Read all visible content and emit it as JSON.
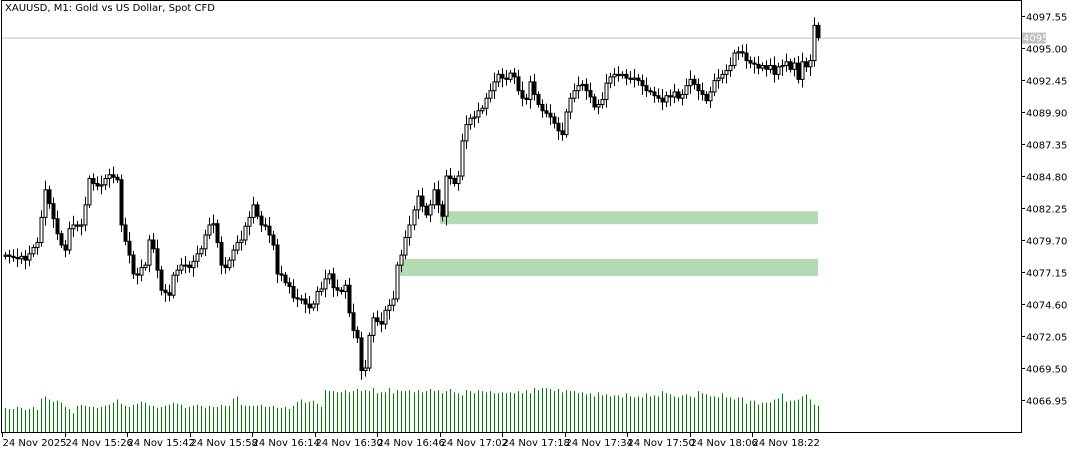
{
  "chart_data": {
    "type": "candlestick",
    "title": "XAUUSD, M1:  Gold vs US Dollar, Spot CFD",
    "symbol": "XAUUSD",
    "timeframe": "M1",
    "current_price": "4095.83",
    "y_ticks": [
      "4097.55",
      "4095.00",
      "4092.45",
      "4089.90",
      "4087.35",
      "4084.80",
      "4082.25",
      "4079.70",
      "4077.15",
      "4074.60",
      "4072.05",
      "4069.50",
      "4066.95"
    ],
    "x_ticks": [
      "24 Nov 2025",
      "24 Nov 15:26",
      "24 Nov 15:42",
      "24 Nov 15:58",
      "24 Nov 16:14",
      "24 Nov 16:30",
      "24 Nov 16:46",
      "24 Nov 17:02",
      "24 Nov 17:18",
      "24 Nov 17:34",
      "24 Nov 17:50",
      "24 Nov 18:06",
      "24 Nov 18:22"
    ],
    "zones": [
      {
        "from_time": "24 Nov 17:00",
        "top": 4081.99,
        "bottom": 4080.96,
        "color": "#b3dbb3"
      },
      {
        "from_time": "24 Nov 16:50",
        "top": 4078.19,
        "bottom": 4076.83,
        "color": "#b3dbb3"
      }
    ],
    "colors": {
      "bull": "#ffffff",
      "bear": "#000000",
      "outline": "#000000",
      "volume": "#008000",
      "price_line": "#c0c0c0"
    },
    "close": [
      4078.5,
      4078.4,
      4078.3,
      4078.2,
      4078.4,
      4078.1,
      4078.6,
      4079.1,
      4079.5,
      4081.5,
      4083.7,
      4082.6,
      4081.4,
      4080.2,
      4079.3,
      4078.9,
      4080.6,
      4080.9,
      4080.8,
      4080.9,
      4082.5,
      4084.6,
      4084.2,
      4084.0,
      4084.1,
      4084.6,
      4084.9,
      4084.7,
      4084.5,
      4080.9,
      4079.6,
      4078.5,
      4077.0,
      4076.9,
      4077.5,
      4077.7,
      4079.7,
      4079.0,
      4077.3,
      4075.7,
      4075.5,
      4075.3,
      4076.9,
      4077.3,
      4077.7,
      4077.7,
      4077.5,
      4078.0,
      4078.6,
      4079.0,
      4080.1,
      4080.9,
      4081.0,
      4079.5,
      4077.7,
      4077.5,
      4078.1,
      4078.9,
      4079.5,
      4079.7,
      4080.8,
      4081.5,
      4082.5,
      4081.6,
      4080.9,
      4080.8,
      4080.1,
      4079.3,
      4077.0,
      4076.9,
      4076.3,
      4076.0,
      4075.1,
      4075.0,
      4075.0,
      4074.6,
      4074.3,
      4074.6,
      4075.6,
      4075.8,
      4076.6,
      4077.0,
      4075.9,
      4075.7,
      4075.6,
      4076.1,
      4073.9,
      4072.5,
      4071.9,
      4069.3,
      4069.5,
      4072.1,
      4073.5,
      4073.2,
      4073.0,
      4074.1,
      4074.5,
      4075.0,
      4077.7,
      4078.5,
      4079.9,
      4080.9,
      4082.1,
      4083.2,
      4082.4,
      4081.7,
      4082.5,
      4083.7,
      4082.5,
      4081.6,
      4084.8,
      4084.6,
      4084.2,
      4084.8,
      4087.6,
      4088.9,
      4089.4,
      4089.5,
      4090.0,
      4090.2,
      4091.0,
      4091.6,
      4092.3,
      4092.9,
      4092.6,
      4092.5,
      4093.0,
      4092.7,
      4091.6,
      4091.0,
      4090.9,
      4092.3,
      4091.3,
      4090.5,
      4090.0,
      4089.8,
      4089.5,
      4089.0,
      4088.4,
      4088.1,
      4089.9,
      4091.0,
      4091.6,
      4092.0,
      4092.1,
      4091.6,
      4091.1,
      4090.3,
      4090.5,
      4090.9,
      4092.2,
      4092.7,
      4092.9,
      4092.8,
      4092.9,
      4092.6,
      4092.5,
      4092.6,
      4092.4,
      4092.0,
      4091.6,
      4091.5,
      4091.2,
      4091.0,
      4090.7,
      4091.2,
      4091.1,
      4091.5,
      4091.0,
      4091.3,
      4092.0,
      4092.5,
      4092.1,
      4091.6,
      4091.3,
      4090.8,
      4091.5,
      4092.4,
      4092.6,
      4092.9,
      4093.2,
      4093.6,
      4094.6,
      4094.7,
      4094.6,
      4094.0,
      4093.8,
      4093.7,
      4093.4,
      4093.6,
      4093.3,
      4093.6,
      4092.9,
      4093.5,
      4093.6,
      4093.9,
      4093.3,
      4093.8,
      4092.5,
      4093.9,
      4093.5,
      4094.0,
      4096.8,
      4095.83
    ],
    "volume": [
      92,
      88,
      88,
      96,
      92,
      84,
      88,
      96,
      84,
      128,
      136,
      124,
      116,
      120,
      112,
      96,
      88,
      72,
      100,
      104,
      100,
      96,
      96,
      92,
      96,
      100,
      104,
      112,
      124,
      108,
      100,
      96,
      104,
      108,
      116,
      112,
      100,
      100,
      92,
      96,
      100,
      104,
      112,
      108,
      104,
      92,
      96,
      100,
      104,
      100,
      92,
      100,
      96,
      96,
      104,
      100,
      100,
      128,
      136,
      104,
      100,
      100,
      100,
      100,
      104,
      96,
      96,
      100,
      92,
      92,
      96,
      88,
      100,
      116,
      124,
      112,
      116,
      120,
      108,
      96,
      160,
      156,
      156,
      152,
      152,
      160,
      152,
      156,
      164,
      156,
      160,
      156,
      168,
      148,
      152,
      152,
      168,
      148,
      160,
      156,
      156,
      160,
      152,
      160,
      152,
      156,
      164,
      156,
      160,
      148,
      156,
      164,
      152,
      148,
      140,
      160,
      156,
      148,
      160,
      156,
      152,
      156,
      148,
      148,
      152,
      148,
      152,
      148,
      156,
      148,
      160,
      148,
      168,
      160,
      168,
      168,
      164,
      156,
      164,
      152,
      160,
      156,
      156,
      148,
      152,
      144,
      148,
      136,
      152,
      140,
      144,
      136,
      140,
      140,
      132,
      148,
      136,
      132,
      136,
      132,
      148,
      136,
      140,
      136,
      156,
      148,
      144,
      136,
      132,
      140,
      144,
      136,
      132,
      156,
      148,
      144,
      136,
      136,
      132,
      148,
      132,
      132,
      124,
      132,
      132,
      108,
      120,
      120,
      104,
      112,
      112,
      112,
      124,
      128,
      148,
      116,
      120,
      120,
      124,
      136,
      144,
      124,
      104,
      100
    ],
    "ylim": [
      4063.6,
      4098.8
    ]
  }
}
